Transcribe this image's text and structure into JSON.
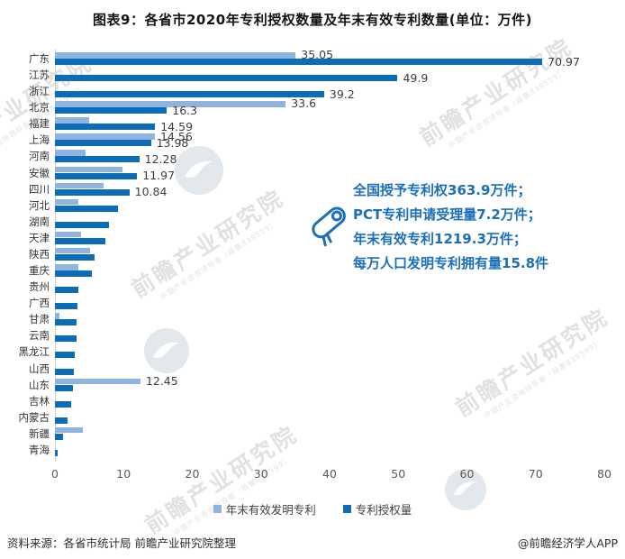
{
  "title": "图表9：各省市2020年专利授权数量及年末有效专利数量(单位：万件)",
  "annotation": {
    "lines": [
      "全国授予专利权363.9万件；",
      "PCT专利申请受理量7.2万件；",
      "年末有效专利1219.3万件；",
      "每万人口发明专利拥有量15.8件"
    ],
    "color": "#1a6fb8"
  },
  "legend": {
    "items": [
      {
        "label": "年末有效发明专利",
        "color": "#90b4e0"
      },
      {
        "label": "专利授权量",
        "color": "#0c6cb5"
      }
    ]
  },
  "footer": {
    "source": "资料来源：各省市统计局 前瞻产业研究院整理",
    "credit": "@前瞻经济学人APP"
  },
  "watermark": {
    "text": "前瞻产业研究院",
    "subtext": "中国产业咨询领导者（股票839599）"
  },
  "chart_data": {
    "type": "bar",
    "orientation": "horizontal",
    "unit": "万件",
    "title": "各省市2020年专利授权数量及年末有效专利数量",
    "categories": [
      "广东",
      "江苏",
      "浙江",
      "北京",
      "福建",
      "上海",
      "河南",
      "安徽",
      "四川",
      "河北",
      "湖南",
      "天津",
      "陕西",
      "重庆",
      "贵州",
      "广西",
      "甘肃",
      "云南",
      "黑龙江",
      "山西",
      "山东",
      "吉林",
      "内蒙古",
      "新疆",
      "青海"
    ],
    "series": [
      {
        "name": "年末有效发明专利",
        "color": "#90b4e0",
        "values": [
          35.05,
          0,
          0,
          33.6,
          5.0,
          14.56,
          4.4,
          9.8,
          7.1,
          3.4,
          0,
          3.8,
          5.1,
          3.4,
          0,
          0,
          0.7,
          0,
          0,
          0,
          12.45,
          0,
          0,
          4.1,
          0
        ]
      },
      {
        "name": "专利授权量",
        "color": "#0c6cb5",
        "values": [
          70.97,
          49.9,
          39.2,
          16.3,
          14.59,
          13.98,
          12.28,
          11.97,
          10.84,
          9.2,
          7.9,
          7.4,
          5.8,
          5.4,
          3.4,
          3.3,
          3.1,
          3.1,
          2.9,
          2.7,
          2.6,
          2.3,
          1.8,
          1.2,
          0.4
        ]
      }
    ],
    "value_labels": [
      [
        "35.05",
        null,
        null,
        "33.6",
        null,
        "14.56",
        null,
        null,
        null,
        null,
        null,
        null,
        null,
        null,
        null,
        null,
        null,
        null,
        null,
        null,
        "12.45",
        null,
        null,
        null,
        null
      ],
      [
        "70.97",
        "49.9",
        "39.2",
        "16.3",
        "14.59",
        "13.98",
        "12.28",
        "11.97",
        "10.84",
        null,
        null,
        null,
        null,
        null,
        null,
        null,
        null,
        null,
        null,
        null,
        null,
        null,
        null,
        null,
        null
      ]
    ],
    "xlim": [
      0,
      80
    ],
    "xticks": [
      0,
      10,
      20,
      30,
      40,
      50,
      60,
      70,
      80
    ],
    "grid": false,
    "legend_position": "bottom"
  }
}
